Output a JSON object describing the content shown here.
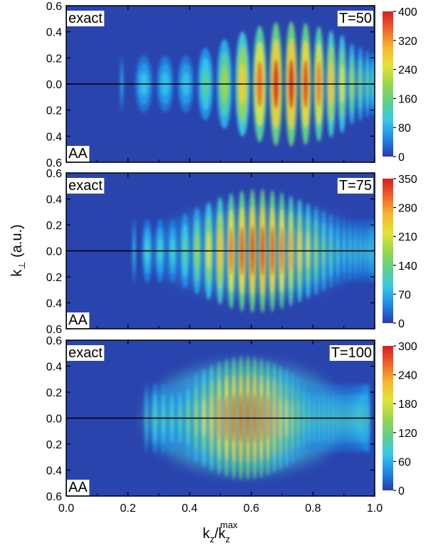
{
  "chart_data": {
    "type": "heatmap",
    "xlabel": {
      "base": "k",
      "sub": "z",
      "mid": "/k",
      "sub2": "z",
      "sup2": "max"
    },
    "ylabel": {
      "base": "k",
      "sub": "⊥",
      "rest": " (a.u.)"
    },
    "xlim": [
      0.0,
      1.0
    ],
    "x_ticks": [
      "0.0",
      "0.2",
      "0.4",
      "0.6",
      "0.8",
      "1.0"
    ],
    "y_ticks": [
      "0.6",
      "0.4",
      "0.2",
      "0.0",
      "0.2",
      "0.4",
      "0.6"
    ],
    "colormap": [
      "#2a3aa8",
      "#1e88e6",
      "#36c8e8",
      "#5dd08a",
      "#9ad64a",
      "#e4e432",
      "#f6b82c",
      "#f0642a",
      "#d81c20"
    ],
    "background_color": "#2a44ae",
    "panels": [
      {
        "top_label": "exact",
        "bottom_label": "AA",
        "time_label": "T=50",
        "colorbar_ticks": [
          400,
          320,
          240,
          160,
          80,
          0
        ],
        "colorbar_max": 400
      },
      {
        "top_label": "exact",
        "bottom_label": "AA",
        "time_label": "T=75",
        "colorbar_ticks": [
          350,
          280,
          210,
          140,
          70,
          0
        ],
        "colorbar_max": 350
      },
      {
        "top_label": "exact",
        "bottom_label": "AA",
        "time_label": "T=100",
        "colorbar_ticks": [
          300,
          240,
          180,
          120,
          60,
          0
        ],
        "colorbar_max": 300
      }
    ]
  }
}
